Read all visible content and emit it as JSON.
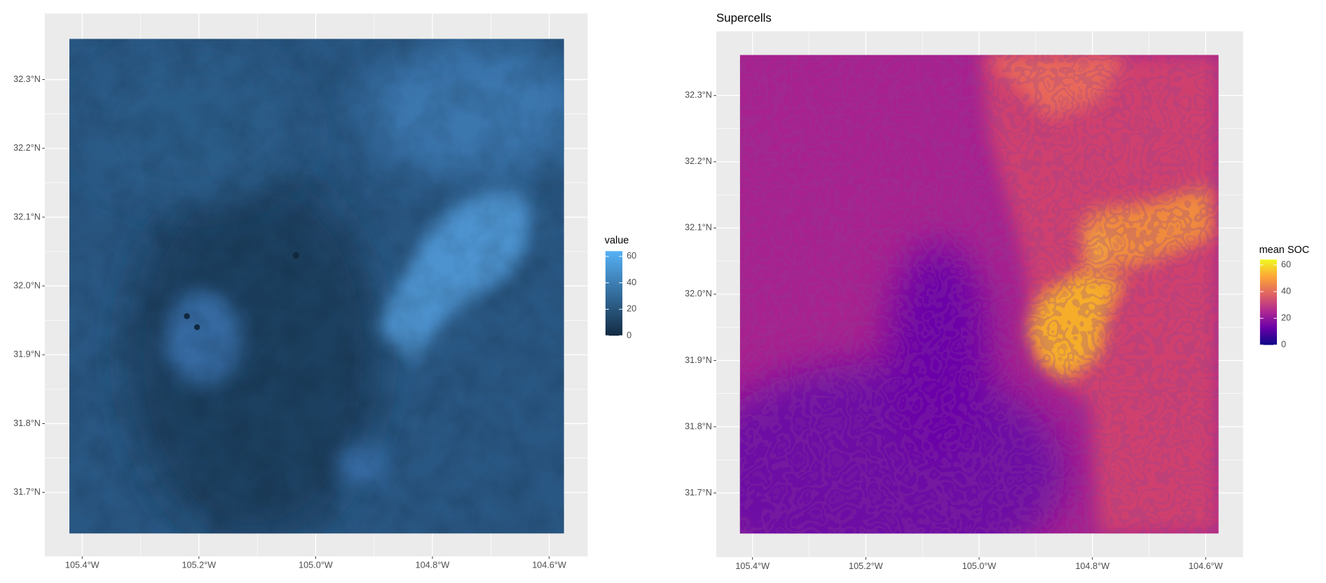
{
  "chart_data": [
    {
      "type": "raster",
      "xlim": [
        -105.464,
        -104.534
      ],
      "ylim": [
        31.607,
        32.396
      ],
      "xticks": [
        {
          "value": -105.4,
          "label": "105.4°W"
        },
        {
          "value": -105.2,
          "label": "105.2°W"
        },
        {
          "value": -105.0,
          "label": "105.0°W"
        },
        {
          "value": -104.8,
          "label": "104.8°W"
        },
        {
          "value": -104.6,
          "label": "104.6°W"
        }
      ],
      "yticks": [
        {
          "value": 31.7,
          "label": "31.7°N"
        },
        {
          "value": 31.8,
          "label": "31.8°N"
        },
        {
          "value": 31.9,
          "label": "31.9°N"
        },
        {
          "value": 32.0,
          "label": "32.0°N"
        },
        {
          "value": 32.1,
          "label": "32.1°N"
        },
        {
          "value": 32.2,
          "label": "32.2°N"
        },
        {
          "value": 32.3,
          "label": "32.3°N"
        }
      ],
      "grid": true,
      "legend": {
        "title": "value",
        "ticks": [
          0,
          20,
          40,
          60
        ],
        "limits": [
          0,
          64
        ],
        "colors": [
          "#132B43",
          "#56B1F7"
        ]
      }
    },
    {
      "type": "polygons",
      "title": "Supercells",
      "xlim": [
        -105.464,
        -104.534
      ],
      "ylim": [
        31.603,
        32.397
      ],
      "xticks": [
        {
          "value": -105.4,
          "label": "105.4°W"
        },
        {
          "value": -105.2,
          "label": "105.2°W"
        },
        {
          "value": -105.0,
          "label": "105.0°W"
        },
        {
          "value": -104.8,
          "label": "104.8°W"
        },
        {
          "value": -104.6,
          "label": "104.6°W"
        }
      ],
      "yticks": [
        {
          "value": 31.7,
          "label": "31.7°N"
        },
        {
          "value": 31.8,
          "label": "31.8°N"
        },
        {
          "value": 31.9,
          "label": "31.9°N"
        },
        {
          "value": 32.0,
          "label": "32.0°N"
        },
        {
          "value": 32.1,
          "label": "32.1°N"
        },
        {
          "value": 32.2,
          "label": "32.2°N"
        },
        {
          "value": 32.3,
          "label": "32.3°N"
        }
      ],
      "grid": true,
      "legend": {
        "title": "mean SOC",
        "ticks": [
          0,
          20,
          40,
          60
        ],
        "limits": [
          0,
          64
        ],
        "colors": [
          "#0D0887",
          "#6A00A8",
          "#B12A90",
          "#E16462",
          "#FCA636",
          "#F0F921"
        ]
      }
    }
  ]
}
